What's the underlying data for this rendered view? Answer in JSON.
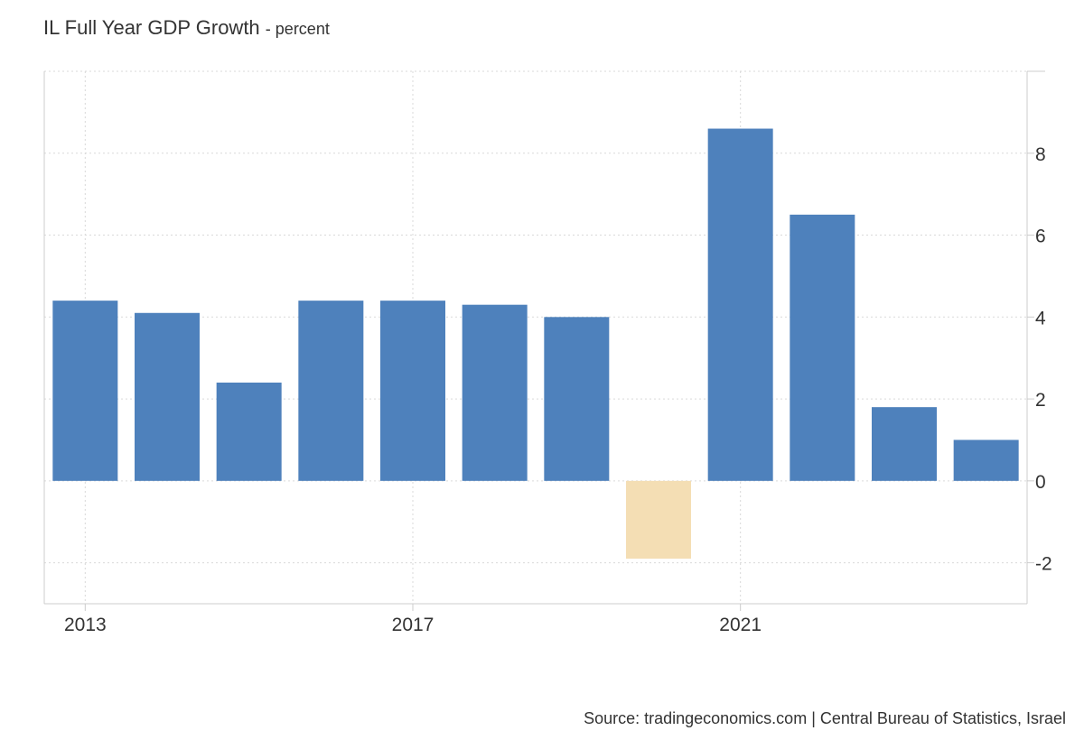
{
  "chart_data": {
    "type": "bar",
    "title": "IL Full Year GDP Growth",
    "subtitle": "- percent",
    "xlabel": "",
    "ylabel": "",
    "categories": [
      "2013",
      "2014",
      "2015",
      "2016",
      "2017",
      "2018",
      "2019",
      "2020",
      "2021",
      "2022",
      "2023",
      "2024"
    ],
    "values": [
      4.4,
      4.1,
      2.4,
      4.4,
      4.4,
      4.3,
      4.0,
      -1.9,
      8.6,
      6.5,
      1.8,
      1.0
    ],
    "ylim": [
      -3,
      10
    ],
    "yticks": [
      -2,
      0,
      2,
      4,
      6,
      8
    ],
    "yticks_labels": [
      "-2",
      "0",
      "2",
      "4",
      "6",
      "8"
    ],
    "xtick_labels": [
      "2013",
      "2017",
      "2021"
    ],
    "grid": true,
    "y_axis_side": "right",
    "colors": {
      "positive": "#4e81bc",
      "negative": "#f4deb4",
      "grid": "#d9d9d9",
      "axis": "#cccccc",
      "text": "#333333"
    },
    "source": "Source: tradingeconomics.com | Central Bureau of Statistics, Israel"
  }
}
